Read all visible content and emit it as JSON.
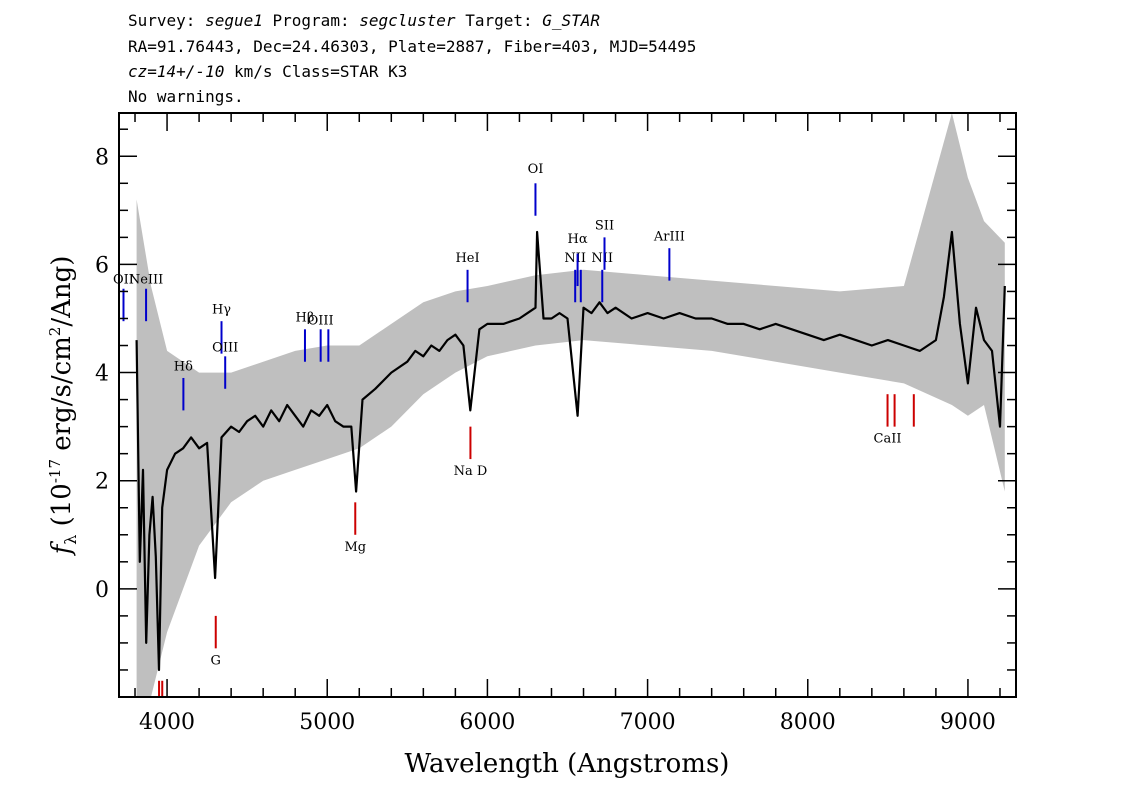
{
  "header": {
    "line1": {
      "survey_key": "Survey:",
      "survey": "segue1",
      "program_key": "Program:",
      "program": "segcluster",
      "target_key": "Target:",
      "target": "G_STAR"
    },
    "line2": "RA=91.76443, Dec=24.46303, Plate=2887, Fiber=403, MJD=54495",
    "line3": {
      "cz": "cz=14+/-10",
      "rest": " km/s Class=STAR K3"
    },
    "line4": "No warnings."
  },
  "chart_data": {
    "type": "line",
    "xlabel": "Wavelength (Angstroms)",
    "ylabel": "f_λ (10^-17 erg/s/cm^2/Ang)",
    "xlim": [
      3700,
      9300
    ],
    "ylim": [
      -2,
      8.8
    ],
    "xticks": [
      4000,
      5000,
      6000,
      7000,
      8000,
      9000
    ],
    "xtick_labels": [
      "4000",
      "5000",
      "6000",
      "7000",
      "8000",
      "9000"
    ],
    "yticks": [
      0,
      2,
      4,
      6,
      8
    ],
    "ytick_labels": [
      "0",
      "2",
      "4",
      "6",
      "8"
    ],
    "series": [
      {
        "role": "flux",
        "color": "#000000",
        "x": [
          3810,
          3830,
          3850,
          3870,
          3890,
          3910,
          3930,
          3950,
          3970,
          4000,
          4050,
          4100,
          4150,
          4200,
          4250,
          4300,
          4340,
          4400,
          4450,
          4500,
          4550,
          4600,
          4650,
          4700,
          4750,
          4800,
          4850,
          4900,
          4950,
          5000,
          5050,
          5100,
          5150,
          5180,
          5220,
          5300,
          5400,
          5500,
          5550,
          5600,
          5650,
          5700,
          5750,
          5800,
          5850,
          5893,
          5950,
          6000,
          6100,
          6200,
          6250,
          6300,
          6310,
          6350,
          6400,
          6450,
          6500,
          6563,
          6600,
          6650,
          6700,
          6750,
          6800,
          6900,
          7000,
          7100,
          7200,
          7300,
          7400,
          7500,
          7600,
          7700,
          7800,
          7900,
          8000,
          8100,
          8200,
          8300,
          8400,
          8500,
          8600,
          8700,
          8800,
          8850,
          8900,
          8950,
          9000,
          9050,
          9100,
          9150,
          9200,
          9230
        ],
        "y": [
          4.6,
          0.5,
          2.2,
          -1.0,
          1.0,
          1.7,
          0.6,
          -1.5,
          1.5,
          2.2,
          2.5,
          2.6,
          2.8,
          2.6,
          2.7,
          0.2,
          2.8,
          3.0,
          2.9,
          3.1,
          3.2,
          3.0,
          3.3,
          3.1,
          3.4,
          3.2,
          3.0,
          3.3,
          3.2,
          3.4,
          3.1,
          3.0,
          3.0,
          1.8,
          3.5,
          3.7,
          4.0,
          4.2,
          4.4,
          4.3,
          4.5,
          4.4,
          4.6,
          4.7,
          4.5,
          3.3,
          4.8,
          4.9,
          4.9,
          5.0,
          5.1,
          5.2,
          6.6,
          5.0,
          5.0,
          5.1,
          5.0,
          3.2,
          5.2,
          5.1,
          5.3,
          5.1,
          5.2,
          5.0,
          5.1,
          5.0,
          5.1,
          5.0,
          5.0,
          4.9,
          4.9,
          4.8,
          4.9,
          4.8,
          4.7,
          4.6,
          4.7,
          4.6,
          4.5,
          4.6,
          4.5,
          4.4,
          4.6,
          5.4,
          6.6,
          4.9,
          3.8,
          5.2,
          4.6,
          4.4,
          3.0,
          5.6
        ]
      }
    ],
    "noise_band": {
      "role": "error",
      "color": "#bfbfbf",
      "x": [
        3810,
        3900,
        4000,
        4200,
        4400,
        4600,
        4800,
        5000,
        5200,
        5400,
        5600,
        5800,
        6000,
        6300,
        6600,
        7000,
        7400,
        7800,
        8200,
        8600,
        8900,
        9000,
        9100,
        9230
      ],
      "lower": [
        -2.0,
        -2.0,
        -0.8,
        0.8,
        1.6,
        2.0,
        2.2,
        2.4,
        2.6,
        3.0,
        3.6,
        4.0,
        4.3,
        4.5,
        4.6,
        4.5,
        4.4,
        4.2,
        4.0,
        3.8,
        3.4,
        3.2,
        3.4,
        1.8
      ],
      "upper": [
        7.2,
        5.6,
        4.4,
        4.0,
        4.0,
        4.2,
        4.4,
        4.5,
        4.5,
        4.9,
        5.3,
        5.5,
        5.6,
        5.8,
        5.9,
        5.8,
        5.7,
        5.6,
        5.5,
        5.6,
        8.8,
        7.6,
        6.8,
        6.4
      ]
    }
  },
  "lines": [
    {
      "label": "OII",
      "x": 3728,
      "y0": 5.55,
      "y1": 4.95,
      "color": "#0000cc",
      "label_y": 5.55,
      "label_above": true
    },
    {
      "label": "NeIII",
      "x": 3869,
      "y0": 5.55,
      "y1": 4.95,
      "color": "#0000cc",
      "label_y": 5.55,
      "label_above": true
    },
    {
      "label": "Hδ",
      "x": 4102,
      "y0": 3.9,
      "y1": 3.3,
      "color": "#0000cc",
      "label_y": 3.95,
      "label_above": true
    },
    {
      "label": "Hγ",
      "x": 4340,
      "y0": 4.95,
      "y1": 4.35,
      "color": "#0000cc",
      "label_y": 5.0,
      "label_above": true
    },
    {
      "label": "OIII",
      "x": 4363,
      "y0": 4.3,
      "y1": 3.7,
      "color": "#0000cc",
      "label_y": 4.3,
      "label_above": true
    },
    {
      "label": "Hβ",
      "x": 4861,
      "y0": 4.8,
      "y1": 4.2,
      "color": "#0000cc",
      "label_y": 4.85,
      "label_above": true
    },
    {
      "label": "OIII",
      "x": 4959,
      "y0": 4.8,
      "y1": 4.2,
      "color": "#0000cc",
      "label_y": 4.8,
      "label_above": true
    },
    {
      "label": "",
      "x": 5007,
      "y0": 4.8,
      "y1": 4.2,
      "color": "#0000cc"
    },
    {
      "label": "HeI",
      "x": 5876,
      "y0": 5.9,
      "y1": 5.3,
      "color": "#0000cc",
      "label_y": 5.95,
      "label_above": true
    },
    {
      "label": "OI",
      "x": 6300,
      "y0": 7.5,
      "y1": 6.9,
      "color": "#0000cc",
      "label_y": 7.6,
      "label_above": true
    },
    {
      "label": "NII",
      "x": 6548,
      "y0": 5.9,
      "y1": 5.3,
      "color": "#0000cc",
      "label_y": 5.95,
      "label_above": true
    },
    {
      "label": "Hα",
      "x": 6563,
      "y0": 6.2,
      "y1": 5.6,
      "color": "#0000cc",
      "label_y": 6.3,
      "label_above": true
    },
    {
      "label": "",
      "x": 6583,
      "y0": 5.9,
      "y1": 5.3,
      "color": "#0000cc"
    },
    {
      "label": "NII",
      "x": 6717,
      "y0": 5.9,
      "y1": 5.3,
      "color": "#0000cc",
      "label_y": 5.95,
      "label_above": true
    },
    {
      "label": "SII",
      "x": 6731,
      "y0": 6.5,
      "y1": 5.9,
      "color": "#0000cc",
      "label_y": 6.55,
      "label_above": true
    },
    {
      "label": "ArIII",
      "x": 7136,
      "y0": 6.3,
      "y1": 5.7,
      "color": "#0000cc",
      "label_y": 6.35,
      "label_above": true
    },
    {
      "label": "G",
      "x": 4304,
      "y0": -0.5,
      "y1": -1.1,
      "color": "#cc0000",
      "label_y": -1.1,
      "label_above": false
    },
    {
      "label": "Mg",
      "x": 5175,
      "y0": 1.6,
      "y1": 1.0,
      "color": "#cc0000",
      "label_y": 1.0,
      "label_above": false
    },
    {
      "label": "Na D",
      "x": 5894,
      "y0": 3.0,
      "y1": 2.4,
      "color": "#cc0000",
      "label_y": 2.4,
      "label_above": false
    },
    {
      "label": "CaII",
      "x": 8498,
      "y0": 3.6,
      "y1": 3.0,
      "color": "#cc0000",
      "label_y": 3.0,
      "label_above": false
    },
    {
      "label": "",
      "x": 8542,
      "y0": 3.6,
      "y1": 3.0,
      "color": "#cc0000"
    },
    {
      "label": "",
      "x": 8662,
      "y0": 3.6,
      "y1": 3.0,
      "color": "#cc0000"
    },
    {
      "label": "",
      "x": 3950,
      "y0": -1.7,
      "y1": -2.0,
      "color": "#cc0000"
    },
    {
      "label": "",
      "x": 3970,
      "y0": -1.7,
      "y1": -2.0,
      "color": "#cc0000"
    }
  ]
}
